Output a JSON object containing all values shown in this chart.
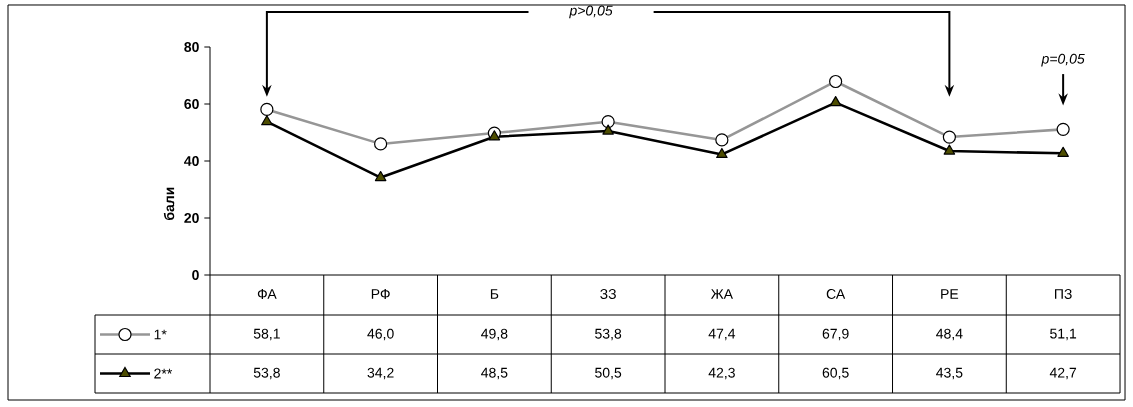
{
  "chart_data": {
    "type": "line",
    "ylabel": "бали",
    "categories": [
      "ФА",
      "РФ",
      "Б",
      "ЗЗ",
      "ЖА",
      "СА",
      "РЕ",
      "ПЗ"
    ],
    "series": [
      {
        "name": "1*",
        "color": "#969696",
        "marker": "circle",
        "values": [
          58.1,
          46.0,
          49.8,
          53.8,
          47.4,
          67.9,
          48.4,
          51.1
        ],
        "value_labels": [
          "58,1",
          "46,0",
          "49,8",
          "53,8",
          "47,4",
          "67,9",
          "48,4",
          "51,1"
        ]
      },
      {
        "name": "2**",
        "color": "#000000",
        "marker": "triangle",
        "values": [
          53.8,
          34.2,
          48.5,
          50.5,
          42.3,
          60.5,
          43.5,
          42.7
        ],
        "value_labels": [
          "53,8",
          "34,2",
          "48,5",
          "50,5",
          "42,3",
          "60,5",
          "43,5",
          "42,7"
        ]
      }
    ],
    "ylim": [
      0,
      80
    ],
    "yticks": [
      0,
      20,
      40,
      60,
      80
    ],
    "legend": "bottom",
    "grid": false,
    "annotations": [
      "*p>0,05*",
      "*p=0,05*"
    ]
  }
}
